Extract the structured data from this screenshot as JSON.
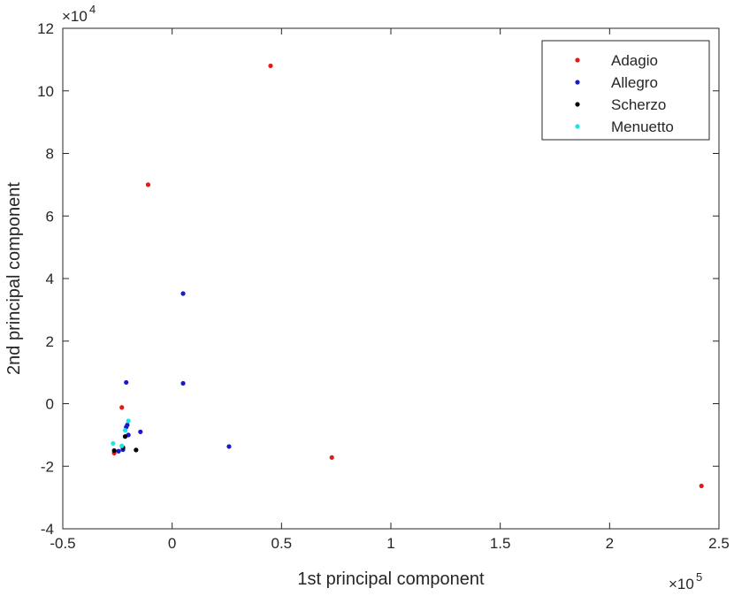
{
  "chart_data": {
    "type": "scatter",
    "xlabel": "1st principal component",
    "ylabel": "2nd principal component",
    "x_multiplier_label": "×10",
    "x_multiplier_exp": "5",
    "y_multiplier_label": "×10",
    "y_multiplier_exp": "4",
    "xlim": [
      -0.5,
      2.5
    ],
    "ylim": [
      -4,
      12
    ],
    "xticks": [
      -0.5,
      0,
      0.5,
      1,
      1.5,
      2,
      2.5
    ],
    "xtick_labels": [
      "-0.5",
      "0",
      "0.5",
      "1",
      "1.5",
      "2",
      "2.5"
    ],
    "yticks": [
      -4,
      -2,
      0,
      2,
      4,
      6,
      8,
      10,
      12
    ],
    "ytick_labels": [
      "-4",
      "-2",
      "0",
      "2",
      "4",
      "6",
      "8",
      "10",
      "12"
    ],
    "grid": false,
    "legend_position": "top-right",
    "series": [
      {
        "name": "Adagio",
        "color": "#e61919",
        "points": [
          [
            0.45,
            10.8
          ],
          [
            -0.11,
            7.0
          ],
          [
            -0.23,
            -0.12
          ],
          [
            0.73,
            -1.72
          ],
          [
            2.42,
            -2.63
          ],
          [
            -0.265,
            -1.58
          ],
          [
            -0.225,
            -1.42
          ]
        ]
      },
      {
        "name": "Allegro",
        "color": "#1a1acc",
        "points": [
          [
            0.05,
            3.52
          ],
          [
            0.05,
            0.65
          ],
          [
            -0.21,
            0.68
          ],
          [
            0.26,
            -1.37
          ],
          [
            -0.145,
            -0.9
          ],
          [
            -0.2,
            -1.0
          ],
          [
            -0.21,
            -0.75
          ],
          [
            -0.205,
            -0.68
          ],
          [
            -0.245,
            -1.52
          ],
          [
            -0.225,
            -1.47
          ]
        ]
      },
      {
        "name": "Scherzo",
        "color": "#000000",
        "points": [
          [
            -0.165,
            -1.48
          ],
          [
            -0.225,
            -1.4
          ],
          [
            -0.215,
            -1.05
          ],
          [
            -0.265,
            -1.5
          ]
        ]
      },
      {
        "name": "Menuetto",
        "color": "#19e6e6",
        "points": [
          [
            -0.27,
            -1.27
          ],
          [
            -0.2,
            -0.55
          ],
          [
            -0.23,
            -1.35
          ],
          [
            -0.215,
            -0.85
          ]
        ]
      }
    ]
  }
}
